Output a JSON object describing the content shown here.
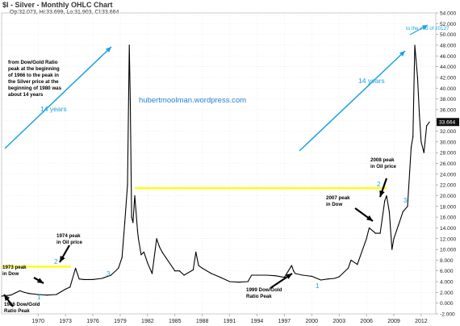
{
  "chart_data": {
    "type": "line",
    "title": "$I - Silver - Monthly OHLC Chart",
    "ohlc_readout": "Op:32.073, Hi:33.699, Lo:31.903, Cl:33.664",
    "watermark": "hubertmoolman.wordpress.com",
    "last_value_label": "33.664",
    "xlabel": "",
    "ylabel": "",
    "ylim": [
      -2,
      54
    ],
    "y_ticks": [
      "-2.000",
      "0.000",
      "2.000",
      "4.000",
      "6.000",
      "8.000",
      "10.000",
      "12.000",
      "14.000",
      "16.000",
      "18.000",
      "20.000",
      "22.000",
      "24.000",
      "26.000",
      "28.000",
      "30.000",
      "32.000",
      "34.000",
      "36.000",
      "38.000",
      "40.000",
      "42.000",
      "44.000",
      "46.000",
      "48.000",
      "50.000",
      "52.000",
      "54.000"
    ],
    "x_ticks": [
      "1970",
      "1973",
      "1976",
      "1979",
      "1982",
      "1985",
      "1988",
      "1991",
      "1994",
      "1997",
      "2000",
      "2003",
      "2006",
      "2009",
      "2012"
    ],
    "xlim": [
      1966.0,
      2013.6
    ],
    "series": [
      {
        "color": "#000000",
        "x": [
          1966.0,
          1967.0,
          1967.5,
          1968.0,
          1968.5,
          1969.0,
          1970.0,
          1971.0,
          1972.0,
          1973.0,
          1973.5,
          1974.1,
          1974.5,
          1975.0,
          1976.0,
          1977.0,
          1978.0,
          1978.8,
          1979.2,
          1979.5,
          1979.8,
          1980.0,
          1980.1,
          1980.25,
          1980.4,
          1980.6,
          1980.9,
          1981.0,
          1981.3,
          1981.6,
          1982.0,
          1982.5,
          1983.0,
          1983.3,
          1983.6,
          1984.0,
          1985.0,
          1985.5,
          1986.0,
          1987.0,
          1987.3,
          1987.6,
          1988.0,
          1989.0,
          1990.0,
          1991.0,
          1992.0,
          1993.0,
          1993.4,
          1994.0,
          1995.0,
          1996.0,
          1997.0,
          1997.8,
          1998.0,
          1998.2,
          1999.0,
          2000.0,
          2001.0,
          2001.8,
          2002.5,
          2003.0,
          2004.0,
          2004.3,
          2005.0,
          2006.0,
          2006.3,
          2007.0,
          2007.5,
          2008.0,
          2008.2,
          2008.5,
          2008.8,
          2009.0,
          2009.5,
          2010.0,
          2010.5,
          2010.9,
          2011.1,
          2011.3,
          2011.6,
          2011.8,
          2012.0,
          2012.3,
          2012.6,
          2012.9
        ],
        "y": [
          1.3,
          1.5,
          1.9,
          2.3,
          2.0,
          1.8,
          1.6,
          1.5,
          1.6,
          2.6,
          3.0,
          6.5,
          4.5,
          4.4,
          4.4,
          4.6,
          5.2,
          6.5,
          8.5,
          15.0,
          22.0,
          48.0,
          38.0,
          16.0,
          15.0,
          20.0,
          13.5,
          12.0,
          9.0,
          9.5,
          7.5,
          5.5,
          12.0,
          10.5,
          9.5,
          8.5,
          6.0,
          6.0,
          5.2,
          6.2,
          9.5,
          7.0,
          6.5,
          5.5,
          4.8,
          4.0,
          3.9,
          4.0,
          5.2,
          5.2,
          5.2,
          5.1,
          4.8,
          7.0,
          6.0,
          5.5,
          5.2,
          5.0,
          4.3,
          4.5,
          4.6,
          4.9,
          6.5,
          8.0,
          7.2,
          12.0,
          14.0,
          13.0,
          13.0,
          19.0,
          20.0,
          17.0,
          10.0,
          12.0,
          14.5,
          17.0,
          18.0,
          29.0,
          31.0,
          48.0,
          42.0,
          35.0,
          30.0,
          28.0,
          33.0,
          33.7
        ]
      }
    ],
    "reference_lines": [
      {
        "y": 6.8,
        "from": 1966.0,
        "to": 1973.6,
        "color": "#ffff00"
      },
      {
        "y": 21.4,
        "from": 1980.6,
        "to": 2008.2,
        "color": "#ffff00"
      }
    ],
    "annotations": [
      {
        "lines": [
          "from Dow/Gold Ratio",
          "peak at the beginning",
          "of 1966 to the peak in",
          "the Silver price at the",
          "beginning of 1980 was",
          "about 14 years"
        ],
        "color": "#000000"
      },
      {
        "lines": [
          "14 years"
        ],
        "color": "#1ba1e2"
      },
      {
        "lines": [
          "14 years"
        ],
        "color": "#1ba1e2"
      },
      {
        "lines": [
          "to the end of 2012?"
        ],
        "color": "#1ba1e2"
      },
      {
        "lines": [
          "1974 peak",
          "in Oil price"
        ],
        "color": "#000000"
      },
      {
        "lines": [
          "1973 peak",
          "in Dow"
        ],
        "color": "#000000"
      },
      {
        "lines": [
          "1966 Dow/Gold",
          "Ratio Peak"
        ],
        "color": "#000000"
      },
      {
        "lines": [
          "2008 peak",
          "in Oil price"
        ],
        "color": "#000000"
      },
      {
        "lines": [
          "2007 peak",
          "in Dow"
        ],
        "color": "#000000"
      },
      {
        "lines": [
          "1999 Dow/Gold",
          "Ratio Peak"
        ],
        "color": "#000000"
      }
    ],
    "wave_labels": [
      "1",
      "2",
      "3",
      "1",
      "2",
      "3"
    ],
    "colors": {
      "price": "#000000",
      "arrow": "#1ba1e2",
      "highlight": "#ffff00",
      "grid": "#e6e6e6",
      "last_box": "#111111"
    },
    "grid": true
  }
}
